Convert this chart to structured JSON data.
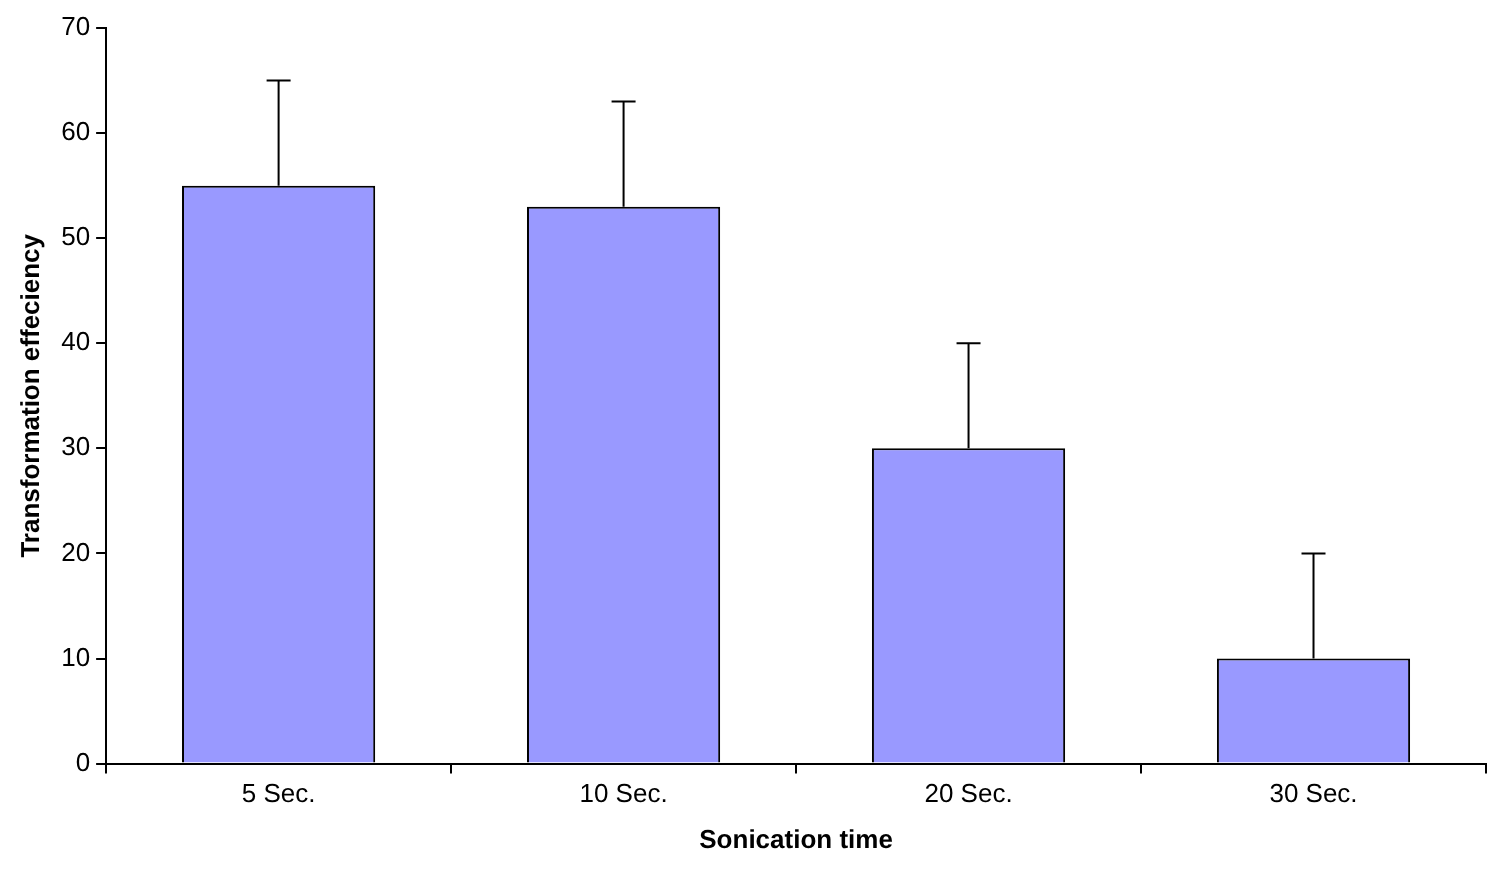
{
  "chart_data": {
    "type": "bar",
    "xlabel": "Sonication time",
    "ylabel": "Transformation effeciency",
    "categories": [
      "5 Sec.",
      "10 Sec.",
      "20 Sec.",
      "30 Sec."
    ],
    "values": [
      55,
      53,
      30,
      10
    ],
    "color": "#9999ff",
    "errors": [
      [
        55,
        65
      ],
      [
        53,
        63
      ],
      [
        30,
        40
      ],
      [
        10,
        20
      ]
    ],
    "ylim": [
      0,
      70
    ],
    "yticks": [
      0,
      10,
      20,
      30,
      40,
      50,
      60,
      70
    ],
    "grid": false,
    "legend": false
  }
}
